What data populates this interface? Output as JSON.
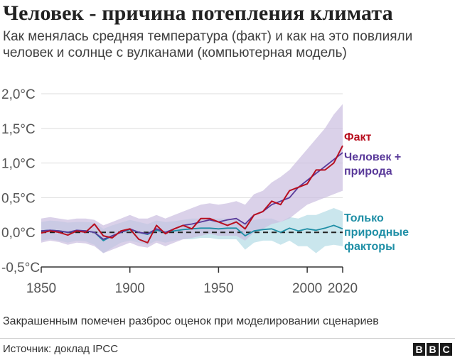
{
  "title": "Человек - причина потепления климата",
  "subtitle": "Как менялась средняя температура (факт) и как на это повлияли человек и солнце с вулканами (компьютерная модель)",
  "footnote": "Закрашенным помечен разброс оценок при моделировании сценариев",
  "source": "Источник: доклад IPCC",
  "logo_letters": [
    "B",
    "B",
    "C"
  ],
  "colors": {
    "observed": "#b80f1f",
    "human_natural": "#5a3a9a",
    "human_natural_band": "#cbbde0",
    "natural": "#1f8fa6",
    "natural_band": "#b3dbe6",
    "zero_line": "#222222",
    "grid": "#dddddd"
  },
  "chart_data": {
    "type": "line",
    "title": "Человек - причина потепления климата",
    "xlabel": "",
    "ylabel": "",
    "xlim": [
      1850,
      2020
    ],
    "ylim": [
      -0.5,
      2.0
    ],
    "x_ticks": [
      "1850",
      "1900",
      "1950",
      "2000",
      "2020"
    ],
    "x_tick_values": [
      1850,
      1900,
      1950,
      2000,
      2020
    ],
    "y_ticks": [
      "-0,5°C",
      "0,0°C",
      "0,5°C",
      "1,0°C",
      "1,5°C",
      "2,0°C"
    ],
    "y_tick_values": [
      -0.5,
      0.0,
      0.5,
      1.0,
      1.5,
      2.0
    ],
    "grid": true,
    "reference_line": 0.0,
    "series": [
      {
        "name": "Факт",
        "label_lines": [
          "Факт"
        ],
        "x": [
          1850,
          1855,
          1860,
          1865,
          1870,
          1875,
          1880,
          1885,
          1890,
          1895,
          1900,
          1905,
          1910,
          1915,
          1920,
          1925,
          1930,
          1935,
          1940,
          1945,
          1950,
          1955,
          1960,
          1965,
          1970,
          1975,
          1980,
          1985,
          1990,
          1995,
          2000,
          2005,
          2010,
          2015,
          2020
        ],
        "values": [
          -0.01,
          0.02,
          0.0,
          -0.04,
          0.02,
          0.0,
          0.12,
          -0.05,
          -0.08,
          0.02,
          0.05,
          -0.1,
          -0.15,
          0.1,
          -0.02,
          0.05,
          0.1,
          0.05,
          0.2,
          0.2,
          0.15,
          0.1,
          0.15,
          0.05,
          0.25,
          0.3,
          0.45,
          0.4,
          0.6,
          0.65,
          0.7,
          0.9,
          0.9,
          1.0,
          1.25
        ]
      },
      {
        "name": "Человек + природа",
        "label_lines": [
          "Человек +",
          "природа"
        ],
        "x": [
          1850,
          1855,
          1860,
          1865,
          1870,
          1875,
          1880,
          1885,
          1890,
          1895,
          1900,
          1905,
          1910,
          1915,
          1920,
          1925,
          1930,
          1935,
          1940,
          1945,
          1950,
          1955,
          1960,
          1965,
          1970,
          1975,
          1980,
          1985,
          1990,
          1995,
          2000,
          2005,
          2010,
          2015,
          2020
        ],
        "values": [
          0.02,
          0.03,
          0.02,
          0.0,
          0.03,
          0.02,
          0.0,
          -0.1,
          -0.05,
          0.0,
          0.05,
          0.0,
          -0.02,
          0.05,
          0.0,
          0.05,
          0.1,
          0.12,
          0.15,
          0.18,
          0.15,
          0.18,
          0.2,
          0.12,
          0.25,
          0.3,
          0.4,
          0.45,
          0.5,
          0.65,
          0.75,
          0.85,
          0.95,
          1.05,
          1.15
        ],
        "band_low": [
          -0.15,
          -0.12,
          -0.14,
          -0.18,
          -0.15,
          -0.16,
          -0.2,
          -0.3,
          -0.25,
          -0.2,
          -0.15,
          -0.2,
          -0.22,
          -0.15,
          -0.2,
          -0.15,
          -0.1,
          -0.08,
          -0.05,
          -0.02,
          -0.05,
          -0.05,
          -0.05,
          -0.12,
          0.0,
          0.05,
          0.12,
          0.15,
          0.2,
          0.3,
          0.4,
          0.45,
          0.5,
          0.55,
          0.6
        ],
        "band_high": [
          0.2,
          0.22,
          0.2,
          0.18,
          0.2,
          0.2,
          0.18,
          0.1,
          0.15,
          0.2,
          0.25,
          0.2,
          0.2,
          0.25,
          0.2,
          0.25,
          0.3,
          0.35,
          0.4,
          0.42,
          0.4,
          0.42,
          0.45,
          0.4,
          0.55,
          0.6,
          0.72,
          0.8,
          0.9,
          1.05,
          1.2,
          1.35,
          1.5,
          1.7,
          1.85
        ]
      },
      {
        "name": "Только природные факторы",
        "label_lines": [
          "Только",
          "природные",
          "факторы"
        ],
        "x": [
          1850,
          1855,
          1860,
          1865,
          1870,
          1875,
          1880,
          1885,
          1890,
          1895,
          1900,
          1905,
          1910,
          1915,
          1920,
          1925,
          1930,
          1935,
          1940,
          1945,
          1950,
          1955,
          1960,
          1965,
          1970,
          1975,
          1980,
          1985,
          1990,
          1995,
          2000,
          2005,
          2010,
          2015,
          2020
        ],
        "values": [
          0.02,
          0.03,
          0.02,
          0.0,
          0.02,
          0.02,
          0.0,
          -0.12,
          -0.05,
          0.0,
          0.04,
          0.0,
          -0.03,
          0.03,
          0.0,
          0.02,
          0.04,
          0.05,
          0.06,
          0.06,
          0.05,
          0.06,
          0.06,
          -0.05,
          0.02,
          0.04,
          0.05,
          0.0,
          0.06,
          0.02,
          0.05,
          0.03,
          0.06,
          0.1,
          0.05
        ],
        "band_low": [
          -0.12,
          -0.1,
          -0.12,
          -0.15,
          -0.12,
          -0.13,
          -0.18,
          -0.3,
          -0.22,
          -0.15,
          -0.12,
          -0.15,
          -0.18,
          -0.12,
          -0.15,
          -0.12,
          -0.1,
          -0.1,
          -0.08,
          -0.08,
          -0.1,
          -0.1,
          -0.1,
          -0.25,
          -0.15,
          -0.12,
          -0.12,
          -0.18,
          -0.12,
          -0.2,
          -0.2,
          -0.3,
          -0.2,
          -0.18,
          -0.2
        ],
        "band_high": [
          0.15,
          0.17,
          0.16,
          0.14,
          0.15,
          0.15,
          0.14,
          0.05,
          0.1,
          0.14,
          0.18,
          0.15,
          0.12,
          0.17,
          0.15,
          0.16,
          0.18,
          0.2,
          0.2,
          0.2,
          0.2,
          0.2,
          0.2,
          0.12,
          0.18,
          0.2,
          0.2,
          0.15,
          0.22,
          0.2,
          0.25,
          0.25,
          0.3,
          0.35,
          0.3
        ]
      }
    ]
  }
}
